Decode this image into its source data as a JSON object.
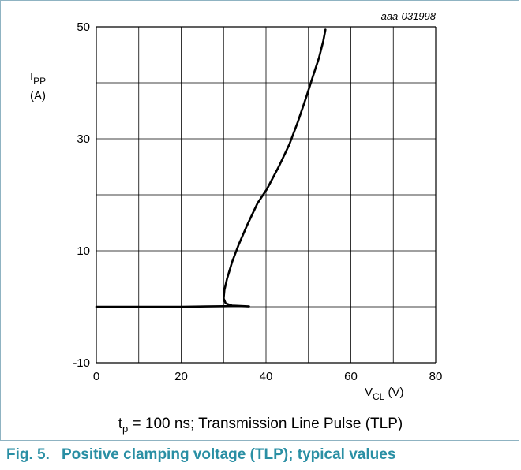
{
  "figure_code": "aaa-031998",
  "caption": {
    "prefix": "t",
    "subscript": "p",
    "rest": " = 100 ns; Transmission Line Pulse (TLP)"
  },
  "figure": {
    "number": "Fig. 5.",
    "title": "Positive clamping voltage (TLP); typical values"
  },
  "chart_data": {
    "type": "line",
    "xlabel": {
      "main": "V",
      "sub": "CL",
      "unit": "(V)"
    },
    "ylabel": {
      "main": "I",
      "sub": "PP",
      "unit": "(A)"
    },
    "xlim": [
      0,
      80
    ],
    "ylim": [
      -10,
      50
    ],
    "x_ticks": [
      0,
      20,
      40,
      60,
      80
    ],
    "y_ticks": [
      -10,
      10,
      30,
      50
    ],
    "grid": true,
    "series": [
      {
        "color": "#000000",
        "points": [
          [
            0,
            0
          ],
          [
            10,
            0
          ],
          [
            20,
            0
          ],
          [
            26,
            0.05
          ],
          [
            30,
            0.1
          ],
          [
            33,
            0.15
          ],
          [
            35,
            0.1
          ],
          [
            36,
            0.05
          ],
          [
            32,
            0.2
          ],
          [
            30.5,
            0.6
          ],
          [
            30,
            1.5
          ],
          [
            30.2,
            3
          ],
          [
            30.8,
            5
          ],
          [
            32,
            8
          ],
          [
            33.5,
            11
          ],
          [
            35.5,
            14.5
          ],
          [
            38,
            18.5
          ],
          [
            40.2,
            21
          ],
          [
            43,
            25
          ],
          [
            45.5,
            29
          ],
          [
            47.5,
            33
          ],
          [
            49.5,
            37.5
          ],
          [
            51,
            41
          ],
          [
            52.5,
            44.5
          ],
          [
            53.5,
            47.5
          ],
          [
            54,
            49.5
          ]
        ]
      }
    ]
  }
}
